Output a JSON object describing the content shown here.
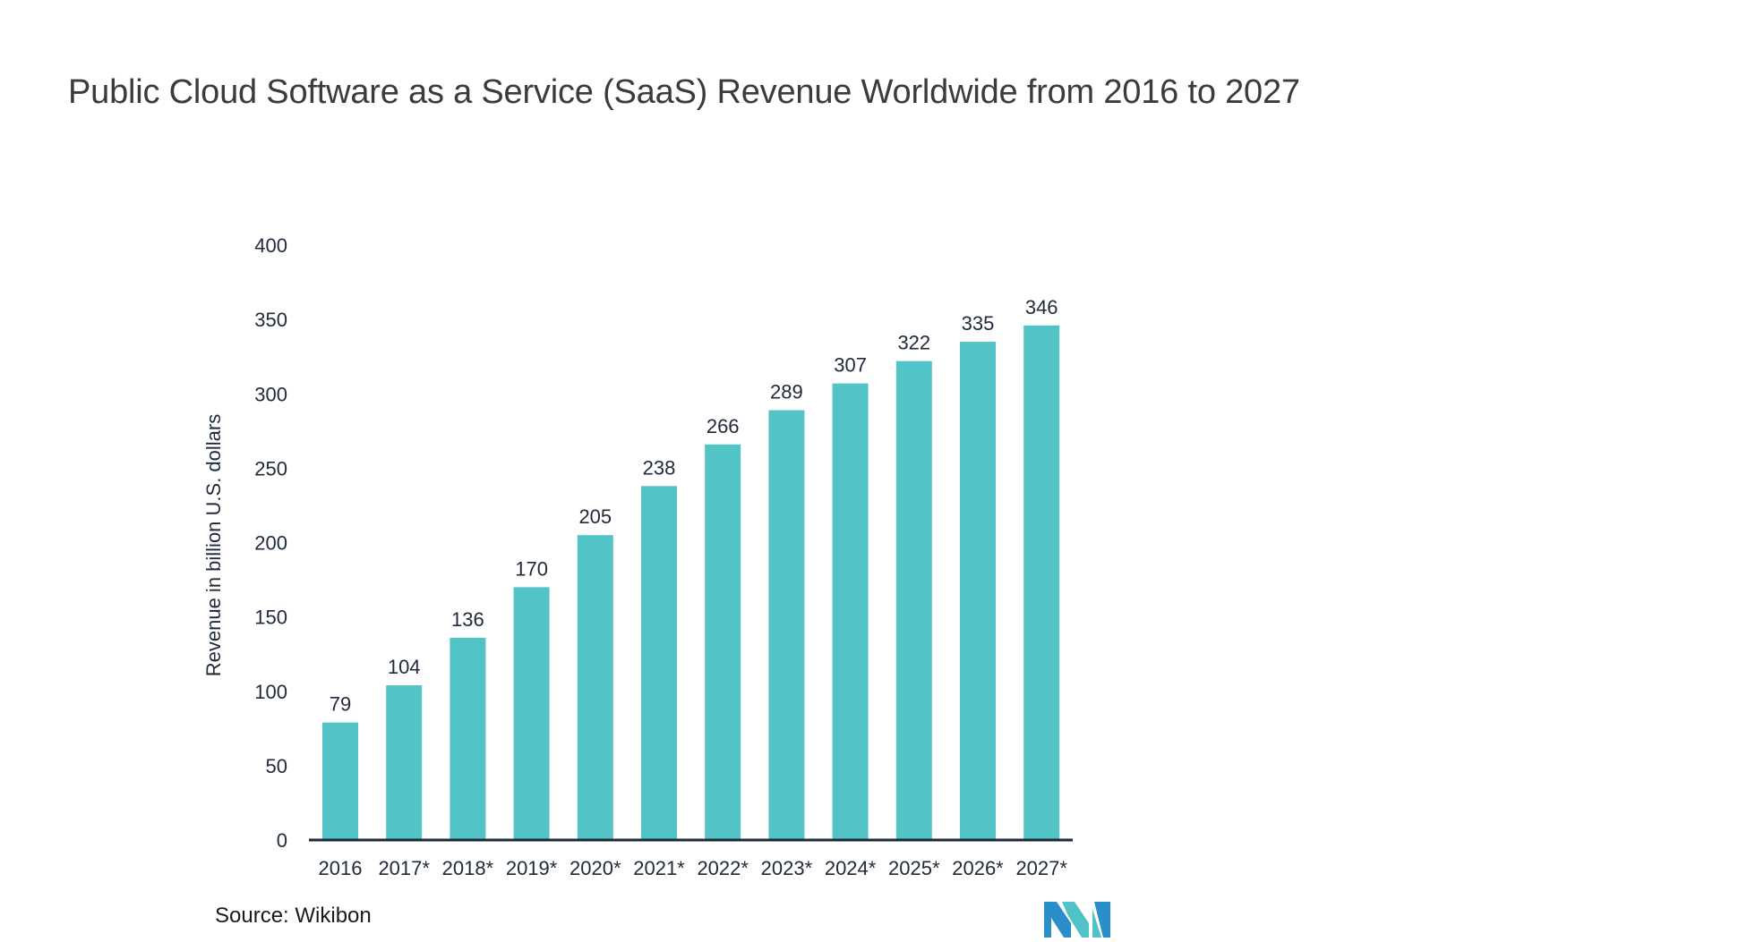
{
  "title": "Public Cloud Software as a Service (SaaS) Revenue Worldwide from 2016 to 2027",
  "source": "Source: Wikibon",
  "chart_data": {
    "type": "bar",
    "title": "Public Cloud Software as a Service (SaaS) Revenue Worldwide from 2016 to 2027",
    "xlabel": "",
    "ylabel": "Revenue in billion U.S. dollars",
    "categories": [
      "2016",
      "2017*",
      "2018*",
      "2019*",
      "2020*",
      "2021*",
      "2022*",
      "2023*",
      "2024*",
      "2025*",
      "2026*",
      "2027*"
    ],
    "values": [
      79,
      104,
      136,
      170,
      205,
      238,
      266,
      289,
      307,
      322,
      335,
      346
    ],
    "ylim": [
      0,
      400
    ],
    "yticks": [
      0,
      50,
      100,
      150,
      200,
      250,
      300,
      350,
      400
    ],
    "grid": false,
    "data_labels": true,
    "bar_color": "#52c3c6",
    "axis_color": "#1f2a38"
  },
  "logo": {
    "icon": "company-logo-icon",
    "colors": [
      "#2a8fc9",
      "#4fc3c7"
    ]
  }
}
